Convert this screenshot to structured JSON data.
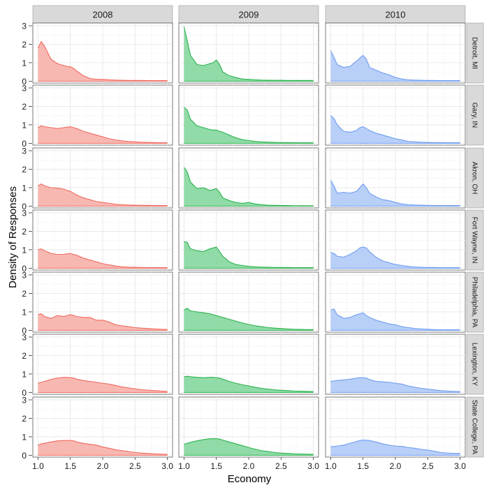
{
  "chart_data": {
    "type": "area",
    "xlabel": "Economy",
    "ylabel": "Density of Responses",
    "xlim": [
      0.92,
      3.08
    ],
    "ylim": [
      -0.1,
      3.15
    ],
    "x_ticks": [
      "1.0",
      "1.5",
      "2.0",
      "2.5",
      "3.0"
    ],
    "x_tick_values": [
      1.0,
      1.5,
      2.0,
      2.5,
      3.0
    ],
    "y_ticks": [
      "0",
      "1",
      "2",
      "3"
    ],
    "y_tick_values": [
      0,
      1,
      2,
      3
    ],
    "grid": true,
    "columns": [
      "2008",
      "2009",
      "2010"
    ],
    "rows": [
      "Detroit, MI",
      "Gary, IN",
      "Akron, OH",
      "Fort Wayne, IN",
      "Philadelphia, PA",
      "Lexington, KY",
      "State College, PA"
    ],
    "colors": {
      "2008": {
        "fill": "#f8b4ae",
        "line": "#f06a60"
      },
      "2009": {
        "fill": "#8ad9a2",
        "line": "#2cb34f"
      },
      "2010": {
        "fill": "#b4ccf7",
        "line": "#6f9df2"
      }
    },
    "x": [
      1.0,
      1.05,
      1.1,
      1.2,
      1.3,
      1.4,
      1.45,
      1.5,
      1.55,
      1.6,
      1.7,
      1.8,
      1.9,
      2.0,
      2.1,
      2.2,
      2.3,
      2.4,
      2.5,
      2.6,
      2.7,
      2.8,
      2.9,
      3.0
    ],
    "panels": [
      [
        [
          1.8,
          2.15,
          1.9,
          1.2,
          0.95,
          0.85,
          0.8,
          0.78,
          0.7,
          0.55,
          0.3,
          0.15,
          0.1,
          0.1,
          0.08,
          0.06,
          0.05,
          0.04,
          0.04,
          0.04,
          0.03,
          0.03,
          0.03,
          0.03
        ],
        [
          2.95,
          2.2,
          1.4,
          0.9,
          0.85,
          0.95,
          1.0,
          1.15,
          0.9,
          0.5,
          0.3,
          0.2,
          0.12,
          0.1,
          0.08,
          0.06,
          0.05,
          0.05,
          0.05,
          0.04,
          0.04,
          0.04,
          0.04,
          0.04
        ],
        [
          1.65,
          1.3,
          0.9,
          0.75,
          0.8,
          1.1,
          1.25,
          1.4,
          1.2,
          0.75,
          0.6,
          0.45,
          0.35,
          0.2,
          0.12,
          0.08,
          0.06,
          0.05,
          0.04,
          0.04,
          0.03,
          0.03,
          0.03,
          0.03
        ]
      ],
      [
        [
          0.85,
          0.95,
          0.9,
          0.85,
          0.8,
          0.85,
          0.88,
          0.9,
          0.85,
          0.8,
          0.65,
          0.55,
          0.45,
          0.35,
          0.25,
          0.18,
          0.13,
          0.1,
          0.08,
          0.06,
          0.05,
          0.04,
          0.03,
          0.03
        ],
        [
          1.95,
          1.8,
          1.3,
          0.95,
          0.85,
          0.75,
          0.72,
          0.72,
          0.65,
          0.6,
          0.45,
          0.3,
          0.2,
          0.15,
          0.1,
          0.08,
          0.06,
          0.05,
          0.04,
          0.04,
          0.03,
          0.03,
          0.03,
          0.03
        ],
        [
          1.5,
          1.35,
          1.0,
          0.65,
          0.6,
          0.7,
          0.85,
          0.9,
          0.8,
          0.7,
          0.55,
          0.45,
          0.35,
          0.25,
          0.18,
          0.1,
          0.08,
          0.06,
          0.05,
          0.04,
          0.04,
          0.03,
          0.03,
          0.03
        ]
      ],
      [
        [
          1.1,
          1.2,
          1.1,
          1.0,
          0.98,
          0.92,
          0.85,
          0.8,
          0.7,
          0.6,
          0.45,
          0.35,
          0.25,
          0.2,
          0.15,
          0.1,
          0.08,
          0.06,
          0.05,
          0.04,
          0.04,
          0.03,
          0.03,
          0.03
        ],
        [
          2.1,
          1.85,
          1.3,
          0.95,
          1.0,
          0.85,
          0.9,
          0.95,
          0.75,
          0.45,
          0.3,
          0.2,
          0.15,
          0.2,
          0.12,
          0.08,
          0.05,
          0.04,
          0.03,
          0.03,
          0.02,
          0.02,
          0.02,
          0.02
        ],
        [
          1.4,
          1.1,
          0.7,
          0.75,
          0.7,
          0.8,
          1.0,
          1.2,
          1.0,
          0.7,
          0.5,
          0.35,
          0.3,
          0.2,
          0.12,
          0.08,
          0.06,
          0.05,
          0.04,
          0.03,
          0.03,
          0.03,
          0.03,
          0.03
        ]
      ],
      [
        [
          1.0,
          1.05,
          0.95,
          0.8,
          0.75,
          0.75,
          0.78,
          0.8,
          0.75,
          0.7,
          0.55,
          0.45,
          0.35,
          0.25,
          0.18,
          0.12,
          0.08,
          0.06,
          0.05,
          0.04,
          0.03,
          0.03,
          0.03,
          0.03
        ],
        [
          1.45,
          1.4,
          1.05,
          0.95,
          0.9,
          1.05,
          1.1,
          1.15,
          0.9,
          0.65,
          0.35,
          0.2,
          0.15,
          0.1,
          0.08,
          0.06,
          0.05,
          0.04,
          0.04,
          0.04,
          0.03,
          0.03,
          0.03,
          0.03
        ],
        [
          0.85,
          0.8,
          0.65,
          0.6,
          0.75,
          0.95,
          1.1,
          1.15,
          1.1,
          0.9,
          0.6,
          0.4,
          0.3,
          0.2,
          0.15,
          0.1,
          0.07,
          0.05,
          0.04,
          0.04,
          0.03,
          0.03,
          0.03,
          0.03
        ]
      ],
      [
        [
          0.85,
          0.9,
          0.75,
          0.65,
          0.8,
          0.75,
          0.8,
          0.85,
          0.8,
          0.75,
          0.7,
          0.7,
          0.55,
          0.55,
          0.45,
          0.3,
          0.25,
          0.2,
          0.15,
          0.12,
          0.1,
          0.08,
          0.06,
          0.05
        ],
        [
          1.1,
          1.2,
          1.05,
          1.0,
          0.95,
          0.9,
          0.85,
          0.8,
          0.75,
          0.7,
          0.6,
          0.5,
          0.4,
          0.32,
          0.25,
          0.2,
          0.15,
          0.12,
          0.1,
          0.08,
          0.06,
          0.05,
          0.04,
          0.04
        ],
        [
          1.1,
          1.15,
          0.85,
          0.65,
          0.7,
          0.85,
          0.9,
          0.95,
          0.8,
          0.7,
          0.55,
          0.45,
          0.35,
          0.3,
          0.2,
          0.15,
          0.1,
          0.08,
          0.06,
          0.04,
          0.03,
          0.03,
          0.03,
          0.03
        ]
      ],
      [
        [
          0.5,
          0.55,
          0.6,
          0.7,
          0.78,
          0.82,
          0.82,
          0.8,
          0.78,
          0.72,
          0.65,
          0.6,
          0.55,
          0.5,
          0.45,
          0.38,
          0.3,
          0.25,
          0.2,
          0.15,
          0.12,
          0.1,
          0.08,
          0.05
        ],
        [
          0.85,
          0.88,
          0.85,
          0.82,
          0.8,
          0.82,
          0.82,
          0.8,
          0.78,
          0.72,
          0.6,
          0.5,
          0.42,
          0.35,
          0.28,
          0.22,
          0.18,
          0.14,
          0.12,
          0.1,
          0.08,
          0.07,
          0.06,
          0.05
        ],
        [
          0.6,
          0.62,
          0.65,
          0.68,
          0.72,
          0.78,
          0.8,
          0.8,
          0.78,
          0.7,
          0.6,
          0.58,
          0.55,
          0.5,
          0.45,
          0.35,
          0.28,
          0.22,
          0.18,
          0.14,
          0.1,
          0.08,
          0.06,
          0.05
        ]
      ],
      [
        [
          0.55,
          0.62,
          0.65,
          0.72,
          0.78,
          0.8,
          0.8,
          0.8,
          0.78,
          0.72,
          0.65,
          0.6,
          0.55,
          0.45,
          0.38,
          0.3,
          0.25,
          0.2,
          0.15,
          0.12,
          0.1,
          0.08,
          0.06,
          0.05
        ],
        [
          0.6,
          0.65,
          0.7,
          0.78,
          0.85,
          0.9,
          0.9,
          0.9,
          0.88,
          0.82,
          0.72,
          0.62,
          0.52,
          0.42,
          0.33,
          0.25,
          0.2,
          0.15,
          0.12,
          0.1,
          0.08,
          0.07,
          0.06,
          0.05
        ],
        [
          0.45,
          0.48,
          0.5,
          0.55,
          0.65,
          0.75,
          0.8,
          0.82,
          0.82,
          0.8,
          0.72,
          0.62,
          0.55,
          0.5,
          0.48,
          0.42,
          0.38,
          0.32,
          0.28,
          0.22,
          0.15,
          0.12,
          0.1,
          0.1
        ]
      ]
    ]
  }
}
